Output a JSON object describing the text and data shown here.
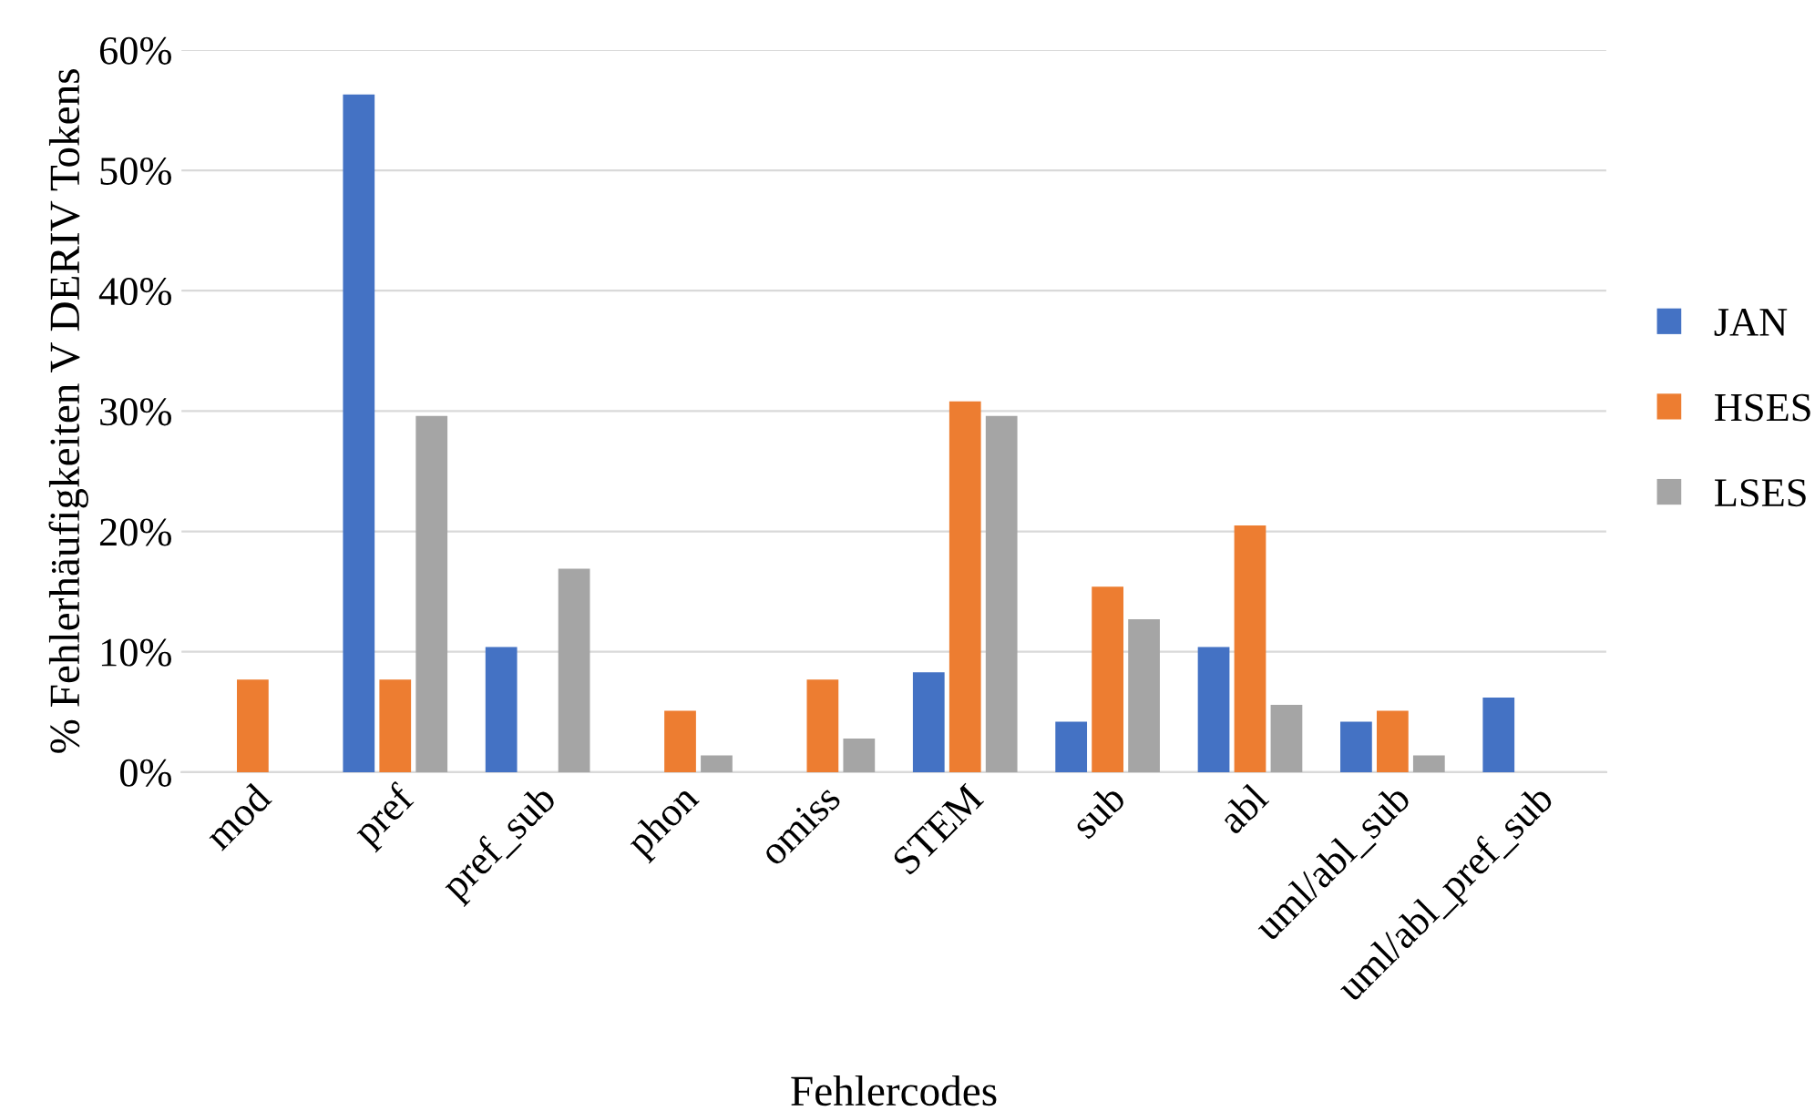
{
  "chart_data": {
    "type": "bar",
    "xlabel": "Fehlercodes",
    "ylabel": "% Fehlerhäufigkeiten V DERIV Tokens",
    "categories": [
      "mod",
      "pref",
      "pref_sub",
      "phon",
      "omiss",
      "STEM",
      "sub",
      "abl",
      "uml/abl_sub",
      "uml/abl_pref_sub"
    ],
    "series": [
      {
        "name": "JAN",
        "color": "#4472c4",
        "values": [
          null,
          56.3,
          10.4,
          null,
          null,
          8.3,
          4.2,
          10.4,
          4.2,
          6.2
        ]
      },
      {
        "name": "HSES",
        "color": "#ed7d31",
        "values": [
          7.7,
          7.7,
          null,
          5.1,
          7.7,
          30.8,
          15.4,
          20.5,
          5.1,
          null
        ]
      },
      {
        "name": "LSES",
        "color": "#a5a5a5",
        "values": [
          null,
          29.6,
          16.9,
          1.4,
          2.8,
          29.6,
          12.7,
          5.6,
          1.4,
          null
        ]
      }
    ],
    "ylim": [
      0,
      60
    ],
    "yticks": [
      {
        "value": 0,
        "label": "0%"
      },
      {
        "value": 10,
        "label": "10%"
      },
      {
        "value": 20,
        "label": "20%"
      },
      {
        "value": 30,
        "label": "30%"
      },
      {
        "value": 40,
        "label": "40%"
      },
      {
        "value": 50,
        "label": "50%"
      },
      {
        "value": 60,
        "label": "60%"
      }
    ],
    "grid": "y",
    "legend": "right"
  }
}
